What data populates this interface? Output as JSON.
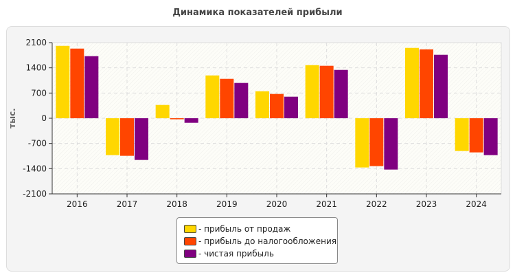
{
  "chart_data": {
    "type": "bar",
    "title": "Динамика показателей прибыли",
    "ylabel": "тыс.",
    "xlabel": "",
    "ylim": [
      -2100,
      2100
    ],
    "yticks": [
      2100,
      1400,
      700,
      0,
      -700,
      -1400,
      -2100
    ],
    "grid": true,
    "legend_position": "bottom",
    "categories": [
      "2016",
      "2017",
      "2018",
      "2019",
      "2020",
      "2021",
      "2022",
      "2023",
      "2024"
    ],
    "series": [
      {
        "name": "- прибыль от продаж",
        "color": "#FFD700",
        "values": [
          2010,
          -1024,
          369,
          1189,
          750,
          1475,
          -1367,
          1953,
          -910
        ]
      },
      {
        "name": "- прибыль до налогообложения",
        "color": "#FF4500",
        "values": [
          1934,
          -1043,
          -15,
          1094,
          674,
          1457,
          -1329,
          1914,
          -948
        ]
      },
      {
        "name": "- чистая прибыль",
        "color": "#800080",
        "values": [
          1724,
          -1158,
          -127,
          980,
          598,
          1342,
          -1425,
          1762,
          -1024
        ]
      }
    ]
  }
}
